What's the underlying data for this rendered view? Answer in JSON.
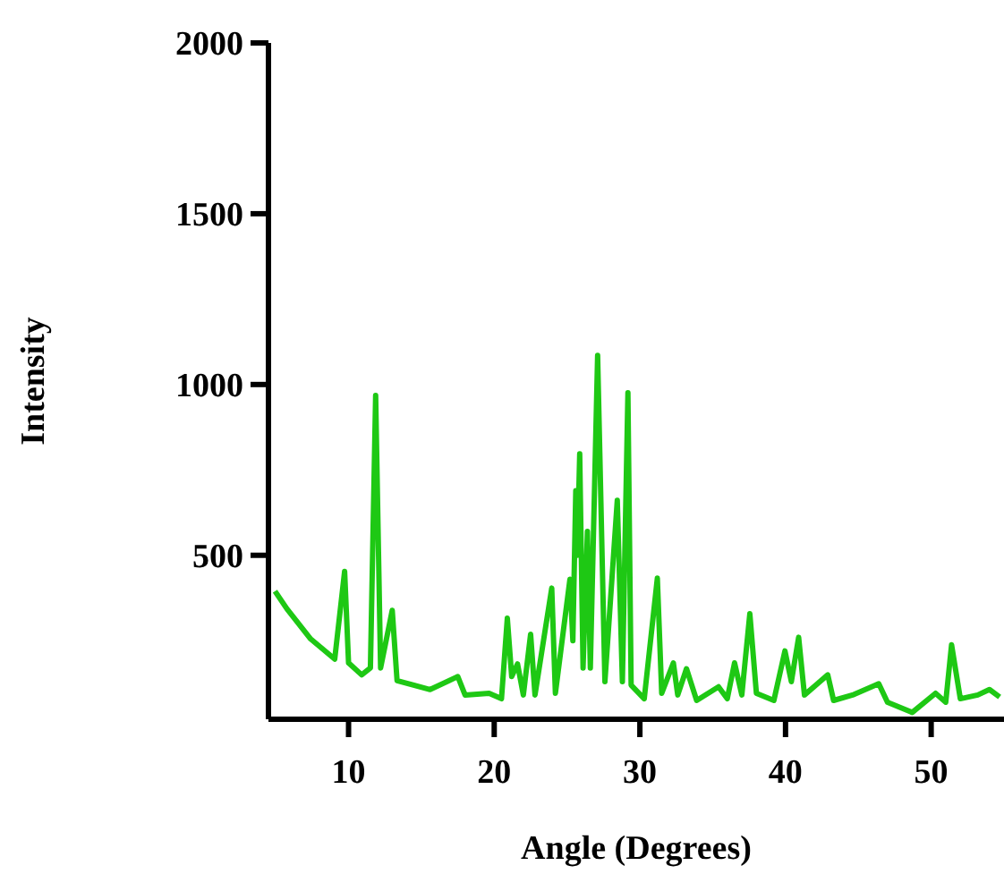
{
  "chart_data": {
    "type": "line",
    "xlabel": "Angle (Degrees)",
    "ylabel": "Intensity",
    "color": "#1ec814",
    "x": [
      4.95,
      5.77,
      7.4,
      9.05,
      9.73,
      10.0,
      10.9,
      11.5,
      11.86,
      12.2,
      13.0,
      13.33,
      15.6,
      17.5,
      18.0,
      19.65,
      20.5,
      20.9,
      21.2,
      21.6,
      22.0,
      22.5,
      22.8,
      23.95,
      24.2,
      25.2,
      25.4,
      25.6,
      25.7,
      25.87,
      26.1,
      26.4,
      26.6,
      27.1,
      27.6,
      28.45,
      28.8,
      29.18,
      29.4,
      30.3,
      31.2,
      31.5,
      32.3,
      32.6,
      33.2,
      33.9,
      35.4,
      36.0,
      36.5,
      37.0,
      37.55,
      38.0,
      39.2,
      39.96,
      40.4,
      40.9,
      41.3,
      42.9,
      43.3,
      44.6,
      46.4,
      47.0,
      48.7,
      50.3,
      51.0,
      51.4,
      52.0,
      53.2,
      54.0,
      54.7
    ],
    "values": [
      395,
      343,
      255,
      196,
      453,
      185,
      150,
      170,
      968,
      170,
      339,
      133,
      107,
      145,
      91,
      96,
      80,
      316,
      145,
      182,
      91,
      269,
      91,
      404,
      96,
      430,
      250,
      689,
      500,
      797,
      170,
      570,
      170,
      1085,
      130,
      661,
      130,
      976,
      120,
      80,
      433,
      96,
      185,
      91,
      168,
      75,
      115,
      80,
      185,
      91,
      329,
      96,
      75,
      220,
      130,
      260,
      91,
      150,
      75,
      91,
      124,
      70,
      40,
      96,
      70,
      238,
      80,
      91,
      107,
      85
    ],
    "xlim": [
      4.5,
      55
    ],
    "xticks": [
      10,
      20,
      30,
      40,
      50
    ],
    "ylim": [
      20,
      2000
    ],
    "yticks": [
      500,
      1000,
      1500,
      2000
    ]
  }
}
